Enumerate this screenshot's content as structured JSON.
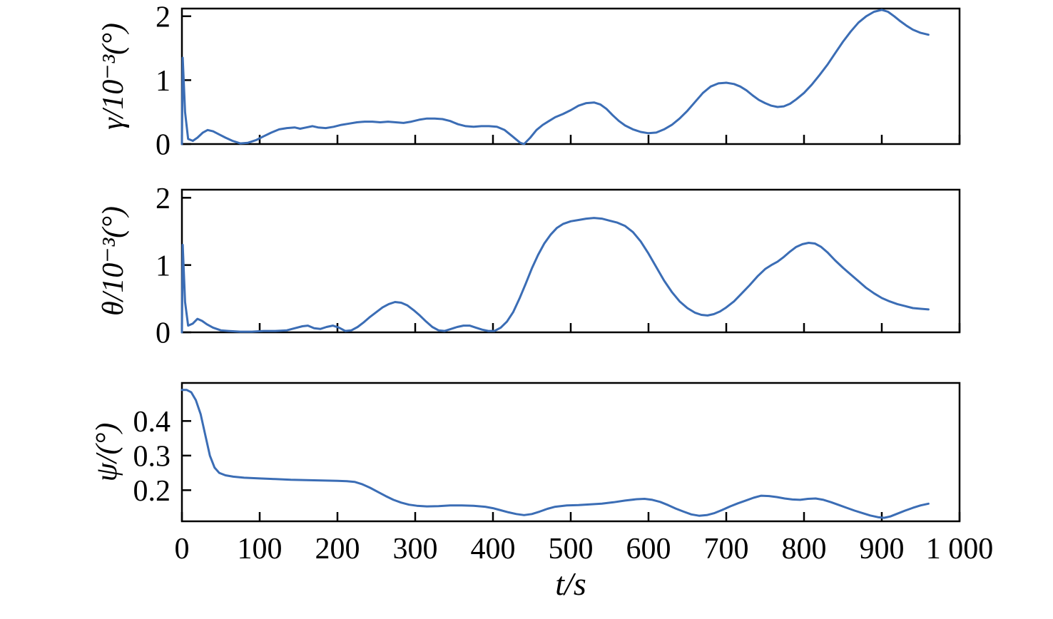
{
  "figure": {
    "background": "#ffffff",
    "axis_color": "#000000",
    "line_color": "#3b6db5",
    "description": "Three stacked time-series subplots of attitude angle errors versus time"
  },
  "chart_data": [
    {
      "type": "line",
      "ylabel": "γ/10⁻³(°)",
      "xlabel": "",
      "xlim": [
        0,
        1000
      ],
      "ylim": [
        0,
        2.12
      ],
      "xticks": [
        0,
        100,
        200,
        300,
        400,
        500,
        600,
        700,
        800,
        900,
        1000
      ],
      "yticks": [
        0,
        1,
        2
      ],
      "ytick_labels": [
        "0",
        "1",
        "2"
      ],
      "xtick_labels": [],
      "line_color": "#3b6db5",
      "points": [
        [
          0,
          0
        ],
        [
          1,
          1.35
        ],
        [
          4,
          0.5
        ],
        [
          8,
          0.08
        ],
        [
          14,
          0.05
        ],
        [
          20,
          0.1
        ],
        [
          27,
          0.18
        ],
        [
          33,
          0.22
        ],
        [
          40,
          0.2
        ],
        [
          48,
          0.15
        ],
        [
          56,
          0.1
        ],
        [
          65,
          0.05
        ],
        [
          75,
          0.01
        ],
        [
          85,
          0.02
        ],
        [
          95,
          0.06
        ],
        [
          105,
          0.12
        ],
        [
          115,
          0.18
        ],
        [
          125,
          0.23
        ],
        [
          135,
          0.25
        ],
        [
          145,
          0.26
        ],
        [
          152,
          0.24
        ],
        [
          160,
          0.26
        ],
        [
          168,
          0.28
        ],
        [
          175,
          0.26
        ],
        [
          185,
          0.25
        ],
        [
          195,
          0.27
        ],
        [
          205,
          0.3
        ],
        [
          215,
          0.32
        ],
        [
          225,
          0.34
        ],
        [
          235,
          0.35
        ],
        [
          245,
          0.35
        ],
        [
          255,
          0.34
        ],
        [
          265,
          0.35
        ],
        [
          275,
          0.34
        ],
        [
          285,
          0.33
        ],
        [
          295,
          0.35
        ],
        [
          305,
          0.38
        ],
        [
          315,
          0.4
        ],
        [
          325,
          0.4
        ],
        [
          335,
          0.39
        ],
        [
          345,
          0.36
        ],
        [
          355,
          0.31
        ],
        [
          365,
          0.28
        ],
        [
          375,
          0.27
        ],
        [
          385,
          0.28
        ],
        [
          395,
          0.28
        ],
        [
          405,
          0.27
        ],
        [
          415,
          0.22
        ],
        [
          425,
          0.12
        ],
        [
          435,
          0.02
        ],
        [
          440,
          0
        ],
        [
          448,
          0.1
        ],
        [
          456,
          0.22
        ],
        [
          464,
          0.3
        ],
        [
          472,
          0.36
        ],
        [
          480,
          0.42
        ],
        [
          490,
          0.47
        ],
        [
          500,
          0.53
        ],
        [
          510,
          0.6
        ],
        [
          520,
          0.64
        ],
        [
          530,
          0.65
        ],
        [
          538,
          0.62
        ],
        [
          546,
          0.55
        ],
        [
          554,
          0.45
        ],
        [
          562,
          0.36
        ],
        [
          570,
          0.29
        ],
        [
          580,
          0.23
        ],
        [
          590,
          0.19
        ],
        [
          600,
          0.17
        ],
        [
          610,
          0.18
        ],
        [
          620,
          0.23
        ],
        [
          630,
          0.3
        ],
        [
          640,
          0.4
        ],
        [
          650,
          0.52
        ],
        [
          660,
          0.66
        ],
        [
          670,
          0.8
        ],
        [
          680,
          0.9
        ],
        [
          690,
          0.95
        ],
        [
          700,
          0.96
        ],
        [
          710,
          0.94
        ],
        [
          718,
          0.9
        ],
        [
          726,
          0.84
        ],
        [
          734,
          0.76
        ],
        [
          742,
          0.69
        ],
        [
          750,
          0.64
        ],
        [
          758,
          0.6
        ],
        [
          766,
          0.58
        ],
        [
          774,
          0.59
        ],
        [
          782,
          0.63
        ],
        [
          790,
          0.7
        ],
        [
          800,
          0.8
        ],
        [
          810,
          0.93
        ],
        [
          820,
          1.08
        ],
        [
          830,
          1.24
        ],
        [
          840,
          1.42
        ],
        [
          850,
          1.6
        ],
        [
          860,
          1.76
        ],
        [
          870,
          1.9
        ],
        [
          880,
          2.0
        ],
        [
          890,
          2.07
        ],
        [
          900,
          2.1
        ],
        [
          908,
          2.07
        ],
        [
          916,
          2.0
        ],
        [
          924,
          1.92
        ],
        [
          932,
          1.85
        ],
        [
          940,
          1.79
        ],
        [
          950,
          1.74
        ],
        [
          960,
          1.71
        ]
      ]
    },
    {
      "type": "line",
      "ylabel": "θ/10⁻³(°)",
      "xlabel": "",
      "xlim": [
        0,
        1000
      ],
      "ylim": [
        0,
        2.12
      ],
      "xticks": [
        0,
        100,
        200,
        300,
        400,
        500,
        600,
        700,
        800,
        900,
        1000
      ],
      "yticks": [
        0,
        1,
        2
      ],
      "ytick_labels": [
        "0",
        "1",
        "2"
      ],
      "xtick_labels": [],
      "line_color": "#3b6db5",
      "points": [
        [
          0,
          0
        ],
        [
          1,
          1.3
        ],
        [
          4,
          0.45
        ],
        [
          8,
          0.1
        ],
        [
          14,
          0.13
        ],
        [
          20,
          0.2
        ],
        [
          26,
          0.17
        ],
        [
          32,
          0.12
        ],
        [
          40,
          0.07
        ],
        [
          50,
          0.03
        ],
        [
          60,
          0.02
        ],
        [
          75,
          0.01
        ],
        [
          90,
          0.01
        ],
        [
          105,
          0.02
        ],
        [
          120,
          0.02
        ],
        [
          135,
          0.03
        ],
        [
          145,
          0.06
        ],
        [
          155,
          0.09
        ],
        [
          162,
          0.1
        ],
        [
          170,
          0.06
        ],
        [
          178,
          0.05
        ],
        [
          186,
          0.08
        ],
        [
          194,
          0.1
        ],
        [
          202,
          0.07
        ],
        [
          210,
          0.02
        ],
        [
          218,
          0.03
        ],
        [
          226,
          0.08
        ],
        [
          234,
          0.15
        ],
        [
          242,
          0.23
        ],
        [
          250,
          0.3
        ],
        [
          258,
          0.37
        ],
        [
          266,
          0.42
        ],
        [
          274,
          0.45
        ],
        [
          282,
          0.44
        ],
        [
          290,
          0.4
        ],
        [
          298,
          0.33
        ],
        [
          306,
          0.25
        ],
        [
          314,
          0.16
        ],
        [
          322,
          0.08
        ],
        [
          330,
          0.03
        ],
        [
          338,
          0.02
        ],
        [
          346,
          0.05
        ],
        [
          354,
          0.08
        ],
        [
          362,
          0.1
        ],
        [
          370,
          0.1
        ],
        [
          378,
          0.07
        ],
        [
          386,
          0.04
        ],
        [
          394,
          0.02
        ],
        [
          402,
          0.02
        ],
        [
          410,
          0.07
        ],
        [
          418,
          0.16
        ],
        [
          426,
          0.3
        ],
        [
          434,
          0.5
        ],
        [
          442,
          0.72
        ],
        [
          450,
          0.95
        ],
        [
          458,
          1.15
        ],
        [
          466,
          1.32
        ],
        [
          474,
          1.45
        ],
        [
          482,
          1.55
        ],
        [
          490,
          1.61
        ],
        [
          500,
          1.65
        ],
        [
          510,
          1.67
        ],
        [
          520,
          1.69
        ],
        [
          530,
          1.7
        ],
        [
          540,
          1.69
        ],
        [
          550,
          1.66
        ],
        [
          560,
          1.63
        ],
        [
          570,
          1.58
        ],
        [
          580,
          1.49
        ],
        [
          590,
          1.35
        ],
        [
          600,
          1.17
        ],
        [
          610,
          0.97
        ],
        [
          620,
          0.77
        ],
        [
          630,
          0.6
        ],
        [
          640,
          0.46
        ],
        [
          650,
          0.36
        ],
        [
          660,
          0.29
        ],
        [
          668,
          0.26
        ],
        [
          676,
          0.25
        ],
        [
          684,
          0.27
        ],
        [
          692,
          0.31
        ],
        [
          700,
          0.37
        ],
        [
          710,
          0.46
        ],
        [
          720,
          0.58
        ],
        [
          730,
          0.7
        ],
        [
          740,
          0.83
        ],
        [
          750,
          0.94
        ],
        [
          758,
          1.0
        ],
        [
          766,
          1.05
        ],
        [
          774,
          1.12
        ],
        [
          782,
          1.2
        ],
        [
          790,
          1.27
        ],
        [
          798,
          1.31
        ],
        [
          806,
          1.33
        ],
        [
          814,
          1.32
        ],
        [
          822,
          1.27
        ],
        [
          830,
          1.19
        ],
        [
          840,
          1.07
        ],
        [
          850,
          0.96
        ],
        [
          860,
          0.86
        ],
        [
          870,
          0.76
        ],
        [
          880,
          0.66
        ],
        [
          890,
          0.58
        ],
        [
          900,
          0.51
        ],
        [
          910,
          0.46
        ],
        [
          920,
          0.42
        ],
        [
          930,
          0.39
        ],
        [
          940,
          0.36
        ],
        [
          950,
          0.35
        ],
        [
          960,
          0.34
        ]
      ]
    },
    {
      "type": "line",
      "ylabel": "ψ/(°)",
      "xlabel": "t/s",
      "xlim": [
        0,
        1000
      ],
      "ylim": [
        0.11,
        0.51
      ],
      "xticks": [
        0,
        100,
        200,
        300,
        400,
        500,
        600,
        700,
        800,
        900,
        1000
      ],
      "yticks": [
        0.2,
        0.3,
        0.4
      ],
      "ytick_labels": [
        "0.2",
        "0.3",
        "0.4"
      ],
      "xtick_labels": [
        "0",
        "100",
        "200",
        "300",
        "400",
        "500",
        "600",
        "700",
        "800",
        "900",
        "1 000"
      ],
      "line_color": "#3b6db5",
      "points": [
        [
          0,
          0.49
        ],
        [
          6,
          0.49
        ],
        [
          12,
          0.483
        ],
        [
          18,
          0.46
        ],
        [
          24,
          0.42
        ],
        [
          30,
          0.36
        ],
        [
          36,
          0.3
        ],
        [
          42,
          0.265
        ],
        [
          48,
          0.25
        ],
        [
          56,
          0.243
        ],
        [
          66,
          0.239
        ],
        [
          80,
          0.236
        ],
        [
          100,
          0.234
        ],
        [
          120,
          0.232
        ],
        [
          140,
          0.23
        ],
        [
          160,
          0.229
        ],
        [
          180,
          0.228
        ],
        [
          200,
          0.227
        ],
        [
          212,
          0.226
        ],
        [
          222,
          0.224
        ],
        [
          232,
          0.217
        ],
        [
          242,
          0.207
        ],
        [
          252,
          0.195
        ],
        [
          262,
          0.183
        ],
        [
          272,
          0.172
        ],
        [
          282,
          0.164
        ],
        [
          292,
          0.158
        ],
        [
          302,
          0.155
        ],
        [
          315,
          0.153
        ],
        [
          330,
          0.154
        ],
        [
          345,
          0.156
        ],
        [
          360,
          0.156
        ],
        [
          375,
          0.155
        ],
        [
          390,
          0.152
        ],
        [
          400,
          0.148
        ],
        [
          410,
          0.142
        ],
        [
          420,
          0.136
        ],
        [
          430,
          0.131
        ],
        [
          440,
          0.128
        ],
        [
          450,
          0.131
        ],
        [
          460,
          0.138
        ],
        [
          470,
          0.146
        ],
        [
          480,
          0.152
        ],
        [
          495,
          0.156
        ],
        [
          510,
          0.157
        ],
        [
          525,
          0.159
        ],
        [
          540,
          0.161
        ],
        [
          555,
          0.165
        ],
        [
          570,
          0.17
        ],
        [
          585,
          0.174
        ],
        [
          595,
          0.175
        ],
        [
          605,
          0.172
        ],
        [
          615,
          0.166
        ],
        [
          625,
          0.157
        ],
        [
          635,
          0.147
        ],
        [
          645,
          0.138
        ],
        [
          655,
          0.13
        ],
        [
          665,
          0.126
        ],
        [
          675,
          0.128
        ],
        [
          685,
          0.134
        ],
        [
          695,
          0.143
        ],
        [
          705,
          0.153
        ],
        [
          715,
          0.162
        ],
        [
          725,
          0.17
        ],
        [
          735,
          0.178
        ],
        [
          745,
          0.184
        ],
        [
          755,
          0.183
        ],
        [
          765,
          0.18
        ],
        [
          775,
          0.176
        ],
        [
          785,
          0.173
        ],
        [
          795,
          0.172
        ],
        [
          805,
          0.175
        ],
        [
          815,
          0.176
        ],
        [
          825,
          0.172
        ],
        [
          835,
          0.165
        ],
        [
          845,
          0.157
        ],
        [
          855,
          0.149
        ],
        [
          865,
          0.141
        ],
        [
          875,
          0.134
        ],
        [
          885,
          0.127
        ],
        [
          895,
          0.122
        ],
        [
          903,
          0.12
        ],
        [
          911,
          0.124
        ],
        [
          920,
          0.132
        ],
        [
          930,
          0.141
        ],
        [
          940,
          0.149
        ],
        [
          950,
          0.156
        ],
        [
          960,
          0.161
        ]
      ]
    }
  ]
}
